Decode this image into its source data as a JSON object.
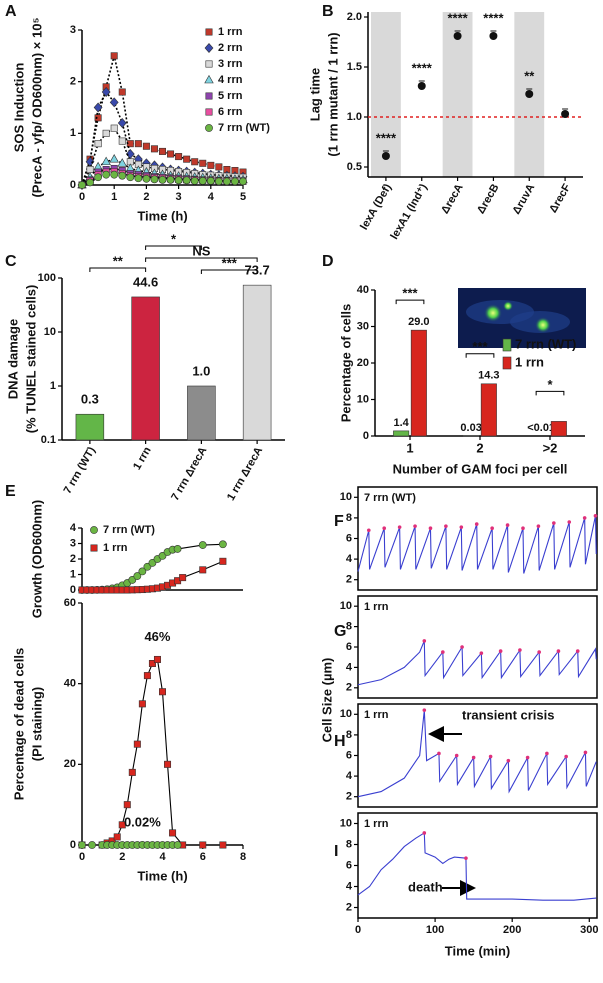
{
  "chart_data": [
    {
      "panel": "A",
      "type": "line",
      "y_label": [
        "SOS Induction",
        "(PrecA - yfp/ OD600nm) × 10⁵"
      ],
      "x_label": "Time (h)",
      "x": [
        0,
        0.25,
        0.5,
        0.75,
        1,
        1.25,
        1.5,
        1.75,
        2,
        2.25,
        2.5,
        2.75,
        3,
        3.25,
        3.5,
        3.75,
        4,
        4.25,
        4.5,
        4.75,
        5
      ],
      "xlim": [
        0,
        5
      ],
      "xticks": [
        0,
        1,
        2,
        3,
        4,
        5
      ],
      "ylim": [
        0,
        3
      ],
      "yticks": [
        0,
        1,
        2,
        3
      ],
      "line_style": "dotted",
      "line_color": "#000000",
      "legend": "upper right",
      "series": [
        {
          "name": "1 rrn",
          "color": "#c0392b",
          "marker": "square",
          "values": [
            0,
            0.5,
            1.3,
            1.9,
            2.5,
            1.8,
            0.8,
            0.8,
            0.75,
            0.7,
            0.65,
            0.6,
            0.55,
            0.5,
            0.45,
            0.42,
            0.38,
            0.35,
            0.3,
            0.28,
            0.25
          ]
        },
        {
          "name": "2 rrn",
          "color": "#3949ab",
          "marker": "diamond",
          "values": [
            0,
            0.45,
            1.5,
            1.8,
            1.6,
            1.2,
            0.6,
            0.5,
            0.42,
            0.38,
            0.34,
            0.3,
            0.28,
            0.26,
            0.24,
            0.22,
            0.2,
            0.19,
            0.18,
            0.17,
            0.16
          ]
        },
        {
          "name": "3 rrn",
          "color": "#d9d9d9",
          "label_color": "#333333",
          "marker": "square",
          "values": [
            0,
            0.3,
            0.8,
            1.0,
            1.1,
            0.85,
            0.45,
            0.4,
            0.35,
            0.32,
            0.3,
            0.28,
            0.26,
            0.24,
            0.22,
            0.2,
            0.19,
            0.18,
            0.17,
            0.16,
            0.15
          ]
        },
        {
          "name": "4 rrn",
          "color": "#7fd3e0",
          "marker": "triangle",
          "values": [
            0,
            0.15,
            0.35,
            0.45,
            0.5,
            0.42,
            0.32,
            0.28,
            0.25,
            0.22,
            0.2,
            0.18,
            0.17,
            0.16,
            0.15,
            0.14,
            0.13,
            0.12,
            0.12,
            0.11,
            0.1
          ]
        },
        {
          "name": "5 rrn",
          "color": "#8e44ad",
          "marker": "square",
          "values": [
            0,
            0.1,
            0.25,
            0.3,
            0.32,
            0.28,
            0.22,
            0.2,
            0.18,
            0.16,
            0.15,
            0.14,
            0.13,
            0.12,
            0.11,
            0.1,
            0.1,
            0.09,
            0.09,
            0.08,
            0.08
          ]
        },
        {
          "name": "6 rrn",
          "color": "#e84fa0",
          "marker": "square",
          "values": [
            0,
            0.08,
            0.2,
            0.25,
            0.26,
            0.22,
            0.18,
            0.16,
            0.15,
            0.14,
            0.13,
            0.12,
            0.11,
            0.1,
            0.1,
            0.09,
            0.09,
            0.08,
            0.08,
            0.08,
            0.07
          ]
        },
        {
          "name": "7 rrn (WT)",
          "color": "#6bb543",
          "marker": "circle",
          "values": [
            0,
            0.05,
            0.15,
            0.2,
            0.2,
            0.18,
            0.15,
            0.13,
            0.12,
            0.11,
            0.1,
            0.1,
            0.09,
            0.09,
            0.08,
            0.08,
            0.08,
            0.07,
            0.07,
            0.07,
            0.07
          ]
        }
      ]
    },
    {
      "panel": "B",
      "type": "scatter",
      "y_label": [
        "Lag time",
        "(1 rrn mutant / 1 rrn)"
      ],
      "categories": [
        "lexA (Def)",
        "lexA1 (Ind⁺)",
        "ΔrecA",
        "ΔrecB",
        "ΔruvA",
        "ΔrecF"
      ],
      "values": [
        0.61,
        1.31,
        1.81,
        1.81,
        1.23,
        1.03
      ],
      "significance": [
        "****",
        "****",
        "****",
        "****",
        "**",
        null
      ],
      "color": "#111111",
      "ylim": [
        0.4,
        2.05
      ],
      "yticks": [
        0.5,
        {
          "value": 1,
          "label": "1.0"
        },
        1.5,
        {
          "value": 2,
          "label": "2.0"
        }
      ],
      "reference_line": 1,
      "reference_color": "#e02020",
      "shaded_bands": true
    },
    {
      "panel": "C",
      "type": "bar",
      "y_label": [
        "DNA damage",
        "(% TUNEL stained cells)"
      ],
      "categories": [
        "7 rrn (WT)",
        "1 rrn",
        "7 rrn ΔrecA",
        "1 rrn ΔrecA"
      ],
      "values": [
        0.3,
        44.6,
        1.0,
        73.7
      ],
      "value_labels": [
        "0.3",
        "44.6",
        "1.0",
        "73.7"
      ],
      "colors": [
        "#63b648",
        "#cc2440",
        "#8c8c8c",
        "#d9d9d9"
      ],
      "log_y": true,
      "ylim": [
        0.1,
        100
      ],
      "yticks": [
        0.1,
        1,
        10,
        100
      ],
      "brackets": [
        {
          "from": 0,
          "to": 1,
          "label": "**"
        },
        {
          "from": 1,
          "to": 3,
          "label": "NS"
        },
        {
          "from": 2,
          "to": 3,
          "label": "***"
        },
        {
          "from": 1,
          "to": 2,
          "label": "*"
        }
      ]
    },
    {
      "panel": "D",
      "type": "bar",
      "y_label": "Percentage of cells",
      "x_label": "Number of GAM foci per cell",
      "categories": [
        "1",
        "2",
        ">2"
      ],
      "ylim": [
        0,
        40
      ],
      "yticks": [
        0,
        10,
        20,
        30,
        40
      ],
      "legend": "center right",
      "significance": [
        "***",
        "***",
        "*"
      ],
      "series": [
        {
          "name": "7 rrn (WT)",
          "color": "#63b648",
          "values": [
            1.4,
            0.03,
            0
          ],
          "value_labels": [
            "1.4",
            "0.03",
            "<0.01"
          ]
        },
        {
          "name": "1 rrn",
          "color": "#d7261e",
          "values": [
            29.0,
            14.3,
            4.0
          ],
          "value_labels": [
            "29.0",
            "14.3",
            null
          ]
        }
      ]
    },
    {
      "panel": "E",
      "type": "line",
      "y_label": "Growth (OD600nm)",
      "xlim": [
        0,
        8
      ],
      "ylim": [
        0,
        4
      ],
      "yticks": [
        0,
        1,
        2,
        3,
        4
      ],
      "line_color": "#000000",
      "legend": "upper left",
      "series": [
        {
          "name": "7 rrn (WT)",
          "color": "#6bb543",
          "marker": "circle",
          "x": [
            0,
            0.25,
            0.5,
            0.75,
            1,
            1.25,
            1.5,
            1.75,
            2,
            2.25,
            2.5,
            2.75,
            3,
            3.25,
            3.5,
            3.75,
            4,
            4.25,
            4.5,
            4.75,
            6,
            7
          ],
          "values": [
            0,
            0,
            0,
            0.01,
            0.02,
            0.05,
            0.1,
            0.17,
            0.3,
            0.45,
            0.65,
            0.9,
            1.2,
            1.5,
            1.75,
            2.0,
            2.2,
            2.45,
            2.6,
            2.65,
            2.9,
            2.95
          ]
        },
        {
          "name": "1 rrn",
          "color": "#d7261e",
          "marker": "square",
          "x": [
            0,
            0.25,
            0.5,
            0.75,
            1,
            1.25,
            1.5,
            1.75,
            2,
            2.25,
            2.5,
            2.75,
            3,
            3.25,
            3.5,
            3.75,
            4,
            4.25,
            4.5,
            4.75,
            5,
            6,
            7
          ],
          "values": [
            0,
            0,
            0,
            0,
            0,
            0,
            0,
            0,
            0,
            0,
            0.01,
            0.02,
            0.03,
            0.05,
            0.08,
            0.12,
            0.2,
            0.3,
            0.45,
            0.6,
            0.8,
            1.3,
            1.85
          ]
        }
      ]
    },
    {
      "type": "line",
      "y_label": [
        "Percentage of dead cells",
        "(PI staining)"
      ],
      "x_label": "Time (h)",
      "xlim": [
        0,
        8
      ],
      "xticks": [
        0,
        2,
        4,
        6,
        8
      ],
      "ylim": [
        0,
        60
      ],
      "yticks": [
        0,
        20,
        40,
        60
      ],
      "line_color": "#000000",
      "series": [
        {
          "name": "1 rrn",
          "color": "#d7261e",
          "marker": "square",
          "x": [
            0,
            1,
            1.25,
            1.5,
            1.75,
            2,
            2.25,
            2.5,
            2.75,
            3,
            3.25,
            3.5,
            3.75,
            4,
            4.25,
            4.5,
            5,
            6,
            7
          ],
          "values": [
            0,
            0,
            0.5,
            1,
            2,
            5,
            10,
            18,
            25,
            35,
            42,
            45,
            46,
            38,
            20,
            3,
            0,
            0,
            0
          ],
          "value_labels": [
            null,
            null,
            null,
            null,
            null,
            null,
            null,
            null,
            null,
            null,
            null,
            null,
            "46%",
            null,
            null,
            null,
            null,
            null,
            null
          ]
        },
        {
          "name": "7 rrn (WT)",
          "color": "#6bb543",
          "marker": "circle",
          "x": [
            0,
            0.5,
            1,
            1.25,
            1.5,
            1.75,
            2,
            2.25,
            2.5,
            2.75,
            3,
            3.25,
            3.5,
            3.75,
            4,
            4.25,
            4.5,
            4.75
          ],
          "values": [
            0,
            0,
            0,
            0,
            0,
            0,
            0,
            0,
            0,
            0,
            0.02,
            0,
            0,
            0,
            0,
            0,
            0,
            0
          ],
          "value_labels": [
            null,
            null,
            null,
            null,
            null,
            null,
            null,
            null,
            null,
            null,
            "0.02%",
            null,
            null,
            null,
            null,
            null,
            null,
            null
          ]
        }
      ]
    },
    {
      "panel": "F",
      "type": "line",
      "label": "7 rrn (WT)",
      "label_color": "#6bb543",
      "xlim": [
        0,
        310
      ],
      "ylim": [
        1,
        11
      ],
      "yticks": [
        2,
        4,
        6,
        8,
        10
      ],
      "division_color": "#e0307a",
      "series": [
        {
          "color": "#3a3fd0",
          "x": [
            0,
            14,
            15,
            34,
            35,
            54,
            55,
            74,
            75,
            94,
            95,
            114,
            115,
            134,
            135,
            154,
            155,
            174,
            175,
            194,
            195,
            214,
            215,
            234,
            235,
            254,
            255,
            274,
            275,
            294,
            295,
            308,
            309
          ],
          "values": [
            2.8,
            6.8,
            3,
            7,
            3.2,
            7.1,
            3,
            7.2,
            3,
            7,
            3.1,
            7.2,
            3,
            7.1,
            2.9,
            7.4,
            3,
            7,
            3,
            7.3,
            2.7,
            7,
            2.6,
            7.2,
            2.9,
            7.5,
            3,
            7.6,
            3.2,
            8,
            3.5,
            8.2,
            4.5
          ]
        }
      ]
    },
    {
      "panel": "G",
      "type": "line",
      "label": "1 rrn",
      "label_color": "#c0202a",
      "y_label": "Cell Size (µm)",
      "xlim": [
        0,
        310
      ],
      "ylim": [
        1,
        11
      ],
      "yticks": [
        2,
        4,
        6,
        8,
        10
      ],
      "division_color": "#e0307a",
      "series": [
        {
          "color": "#3a3fd0",
          "x": [
            0,
            30,
            60,
            80,
            86,
            87,
            110,
            111,
            135,
            136,
            160,
            161,
            185,
            186,
            210,
            211,
            235,
            236,
            260,
            261,
            285,
            286,
            308,
            309
          ],
          "values": [
            2.3,
            2.8,
            4,
            5.5,
            6.6,
            3.2,
            5.5,
            3,
            6,
            3.2,
            5.4,
            3,
            5.6,
            3,
            5.7,
            3.1,
            5.5,
            3.2,
            5.6,
            3.3,
            5.6,
            3.1,
            5.8,
            4.8
          ]
        }
      ]
    },
    {
      "panel": "H",
      "type": "line",
      "label": "1 rrn",
      "label_color": "#c0202a",
      "annotation": "transient crisis",
      "xlim": [
        0,
        310
      ],
      "ylim": [
        1,
        11
      ],
      "yticks": [
        2,
        4,
        6,
        8,
        10
      ],
      "division_color": "#e0307a",
      "series": [
        {
          "color": "#3a3fd0",
          "x": [
            0,
            30,
            60,
            80,
            86,
            89,
            105,
            106,
            128,
            129,
            150,
            151,
            172,
            173,
            195,
            196,
            220,
            221,
            245,
            246,
            270,
            271,
            295,
            296,
            309
          ],
          "values": [
            2,
            2.5,
            3.8,
            6,
            10.4,
            5.5,
            6.2,
            3.5,
            6,
            3.2,
            5.8,
            3,
            5.9,
            2.8,
            5.5,
            2.5,
            5.8,
            2.6,
            6.2,
            3.2,
            5.9,
            2.9,
            6.3,
            3,
            5.4
          ]
        }
      ]
    },
    {
      "panel": "I",
      "type": "line",
      "label": "1 rrn",
      "label_color": "#c0202a",
      "annotation": "death",
      "x_label": "Time (min)",
      "xlim": [
        0,
        310
      ],
      "xticks": [
        0,
        100,
        200,
        300
      ],
      "ylim": [
        1,
        11
      ],
      "yticks": [
        2,
        4,
        6,
        8,
        10
      ],
      "division_color": "#e0307a",
      "series": [
        {
          "color": "#3a3fd0",
          "x": [
            0,
            15,
            30,
            45,
            60,
            75,
            86,
            87,
            100,
            110,
            118,
            125,
            140,
            141,
            170,
            200,
            240,
            280,
            309
          ],
          "values": [
            3.2,
            4,
            5.6,
            6.6,
            7.8,
            8.6,
            9.1,
            7.2,
            6.8,
            6.2,
            6.6,
            6.8,
            6.7,
            2.8,
            2.8,
            2.8,
            2.7,
            2.7,
            2.9
          ]
        }
      ]
    }
  ]
}
